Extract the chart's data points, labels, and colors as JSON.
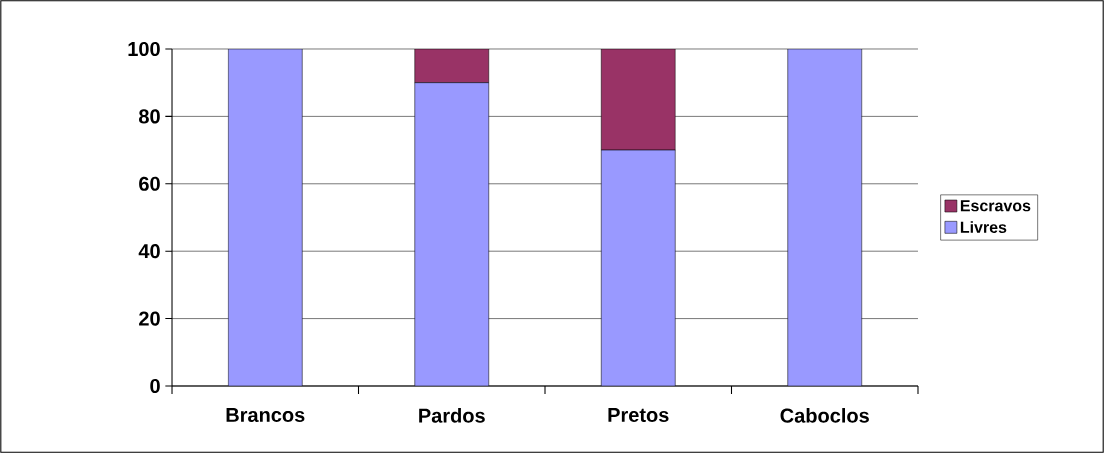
{
  "chart_data": {
    "type": "bar",
    "stacked": true,
    "categories": [
      "Brancos",
      "Pardos",
      "Pretos",
      "Caboclos"
    ],
    "series": [
      {
        "name": "Livres",
        "color": "#9999ff",
        "values": [
          100,
          90,
          70,
          100
        ]
      },
      {
        "name": "Escravos",
        "color": "#993366",
        "values": [
          0,
          10,
          30,
          0
        ]
      }
    ],
    "ylim": [
      0,
      100
    ],
    "yticks": [
      0,
      20,
      40,
      60,
      80,
      100
    ],
    "grid": "y",
    "legend": "right"
  }
}
